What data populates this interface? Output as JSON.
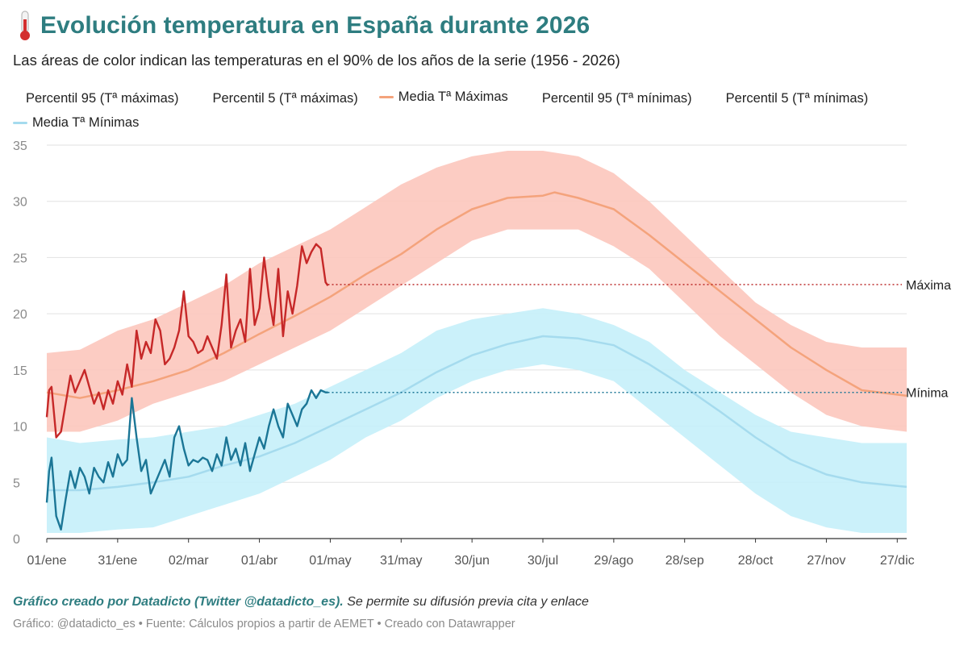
{
  "header": {
    "title": "Evolución temperatura en España durante 2026",
    "subtitle": "Las áreas de color indican las temperaturas en el 90% de los años de la serie (1956 - 2026)",
    "title_icon": "thermometer-icon"
  },
  "legend": [
    {
      "label": "Percentil 95 (Tª máximas)",
      "color": ""
    },
    {
      "label": "Percentil 5 (Tª máximas)",
      "color": ""
    },
    {
      "label": "Media Tª Máximas",
      "color": "#f4a37c"
    },
    {
      "label": "Percentil 95 (Tª mínimas)",
      "color": ""
    },
    {
      "label": "Percentil 5 (Tª mínimas)",
      "color": ""
    },
    {
      "label": "Media Tª Mínimas",
      "color": "#a5dbee"
    }
  ],
  "chart_data": {
    "type": "area",
    "ylim": [
      0,
      35
    ],
    "yticks": [
      0,
      5,
      10,
      15,
      20,
      25,
      30,
      35
    ],
    "xlim": [
      1,
      365
    ],
    "x_unit": "day of year",
    "xtick_labels": [
      "01/ene",
      "31/ene",
      "02/mar",
      "01/abr",
      "01/may",
      "31/may",
      "30/jun",
      "30/jul",
      "29/ago",
      "28/sep",
      "28/oct",
      "27/nov",
      "27/dic"
    ],
    "xtick_days": [
      1,
      31,
      61,
      91,
      121,
      151,
      181,
      211,
      241,
      271,
      301,
      331,
      361
    ],
    "colors": {
      "max_band": "#fcc6bd",
      "max_mean": "#f4a37c",
      "max_2026": "#c62828",
      "min_band": "#c5effa",
      "min_mean": "#a5dbee",
      "min_2026": "#1b7696"
    },
    "max_band": {
      "x": [
        1,
        15,
        31,
        46,
        61,
        76,
        91,
        106,
        121,
        136,
        151,
        166,
        181,
        196,
        211,
        226,
        241,
        256,
        271,
        286,
        301,
        316,
        331,
        346,
        365
      ],
      "p5": [
        9.5,
        9.5,
        10.5,
        12,
        13,
        14,
        15.5,
        17,
        18.5,
        20.5,
        22.5,
        24.5,
        26.5,
        27.5,
        27.5,
        27.5,
        26,
        24,
        21,
        18,
        15.5,
        13,
        11,
        10,
        9.5
      ],
      "p95": [
        16.5,
        16.8,
        18.5,
        19.5,
        21,
        22.5,
        24.5,
        26,
        27.5,
        29.5,
        31.5,
        33,
        34,
        34.5,
        34.5,
        34,
        32.5,
        30,
        27,
        24,
        21,
        19,
        17.5,
        17,
        17
      ]
    },
    "min_band": {
      "x": [
        1,
        15,
        31,
        46,
        61,
        76,
        91,
        106,
        121,
        136,
        151,
        166,
        181,
        196,
        211,
        226,
        241,
        256,
        271,
        286,
        301,
        316,
        331,
        346,
        365
      ],
      "p5": [
        0.5,
        0.5,
        0.8,
        1,
        2,
        3,
        4,
        5.5,
        7,
        9,
        10.5,
        12.5,
        14,
        15,
        15.5,
        15,
        14,
        11.5,
        9,
        6.5,
        4,
        2,
        1,
        0.5,
        0.5
      ],
      "p95": [
        9,
        8.5,
        8.8,
        9,
        9.5,
        10,
        11,
        12,
        13.5,
        15,
        16.5,
        18.5,
        19.5,
        20,
        20.5,
        20,
        19,
        17.5,
        15,
        13,
        11,
        9.5,
        9,
        8.5,
        8.5
      ]
    },
    "max_mean": {
      "x": [
        1,
        15,
        31,
        46,
        61,
        76,
        91,
        106,
        121,
        136,
        151,
        166,
        181,
        196,
        211,
        216,
        226,
        241,
        256,
        271,
        286,
        301,
        316,
        331,
        346,
        365
      ],
      "y": [
        13,
        12.5,
        13.2,
        14,
        15,
        16.5,
        18.2,
        19.8,
        21.5,
        23.5,
        25.3,
        27.5,
        29.3,
        30.3,
        30.5,
        30.8,
        30.3,
        29.3,
        27,
        24.5,
        22,
        19.5,
        17,
        15,
        13.2,
        12.7
      ]
    },
    "min_mean": {
      "x": [
        1,
        15,
        31,
        46,
        61,
        76,
        91,
        106,
        121,
        136,
        151,
        166,
        181,
        196,
        211,
        226,
        241,
        256,
        271,
        286,
        301,
        316,
        331,
        346,
        365
      ],
      "y": [
        4.3,
        4.3,
        4.6,
        5,
        5.5,
        6.5,
        7.3,
        8.5,
        10,
        11.5,
        13,
        14.8,
        16.3,
        17.3,
        18,
        17.8,
        17.2,
        15.5,
        13.5,
        11.3,
        9,
        7,
        5.7,
        5,
        4.6
      ]
    },
    "max_2026": {
      "x": [
        1,
        2,
        3,
        5,
        7,
        9,
        11,
        13,
        15,
        17,
        19,
        21,
        23,
        25,
        27,
        29,
        31,
        33,
        35,
        37,
        39,
        41,
        43,
        45,
        47,
        49,
        51,
        53,
        55,
        57,
        59,
        61,
        63,
        65,
        67,
        69,
        71,
        73,
        75,
        77,
        79,
        81,
        83,
        85,
        87,
        89,
        91,
        93,
        95,
        97,
        99,
        101,
        103,
        105,
        107,
        109,
        111,
        113,
        115,
        117,
        119,
        120
      ],
      "y": [
        10.8,
        13.2,
        13.5,
        9,
        9.5,
        12,
        14.5,
        13,
        14,
        15,
        13.5,
        12,
        13,
        11.5,
        13.2,
        12,
        14,
        12.8,
        15.5,
        13.5,
        18.5,
        16,
        17.5,
        16.5,
        19.5,
        18.5,
        15.5,
        16,
        17,
        18.5,
        22,
        18,
        17.5,
        16.5,
        16.8,
        18,
        17,
        16,
        19,
        23.5,
        17,
        18.5,
        19.5,
        17.5,
        24,
        19,
        20.5,
        25,
        21.5,
        19,
        24,
        18,
        22,
        20,
        22.5,
        26,
        24.5,
        25.5,
        26.2,
        25.8,
        22.8,
        22.5
      ]
    },
    "min_2026": {
      "x": [
        1,
        2,
        3,
        5,
        7,
        9,
        11,
        13,
        15,
        17,
        19,
        21,
        23,
        25,
        27,
        29,
        31,
        33,
        35,
        37,
        39,
        41,
        43,
        45,
        47,
        49,
        51,
        53,
        55,
        57,
        59,
        61,
        63,
        65,
        67,
        69,
        71,
        73,
        75,
        77,
        79,
        81,
        83,
        85,
        87,
        89,
        91,
        93,
        95,
        97,
        99,
        101,
        103,
        105,
        107,
        109,
        111,
        113,
        115,
        117,
        119,
        120
      ],
      "y": [
        3.2,
        6,
        7.2,
        2,
        0.8,
        3.5,
        6,
        4.5,
        6.3,
        5.5,
        4,
        6.3,
        5.5,
        5,
        6.8,
        5.5,
        7.5,
        6.5,
        7,
        12.5,
        9,
        6,
        7,
        4,
        5,
        6,
        7,
        5.5,
        9,
        10,
        8,
        6.5,
        7,
        6.8,
        7.2,
        7,
        6,
        7.5,
        6.5,
        9,
        7,
        8,
        6.5,
        8.5,
        6,
        7.5,
        9,
        8,
        10,
        11.5,
        10,
        9,
        12,
        11,
        10,
        11.5,
        12,
        13.2,
        12.5,
        13.2,
        13,
        13
      ]
    },
    "annotations": [
      {
        "label": "Máxima",
        "value": 22.6,
        "color": "#b71c1c"
      },
      {
        "label": "Mínima",
        "value": 13.0,
        "color": "#1b7696"
      }
    ]
  },
  "footer": {
    "credit_bold": "Gráfico creado por Datadicto (Twitter @datadicto_es).",
    "credit_rest": " Se permite su difusión previa cita y enlace",
    "source": "Gráfico: @datadicto_es • Fuente: Cálculos propios a partir de AEMET • Creado con Datawrapper"
  }
}
